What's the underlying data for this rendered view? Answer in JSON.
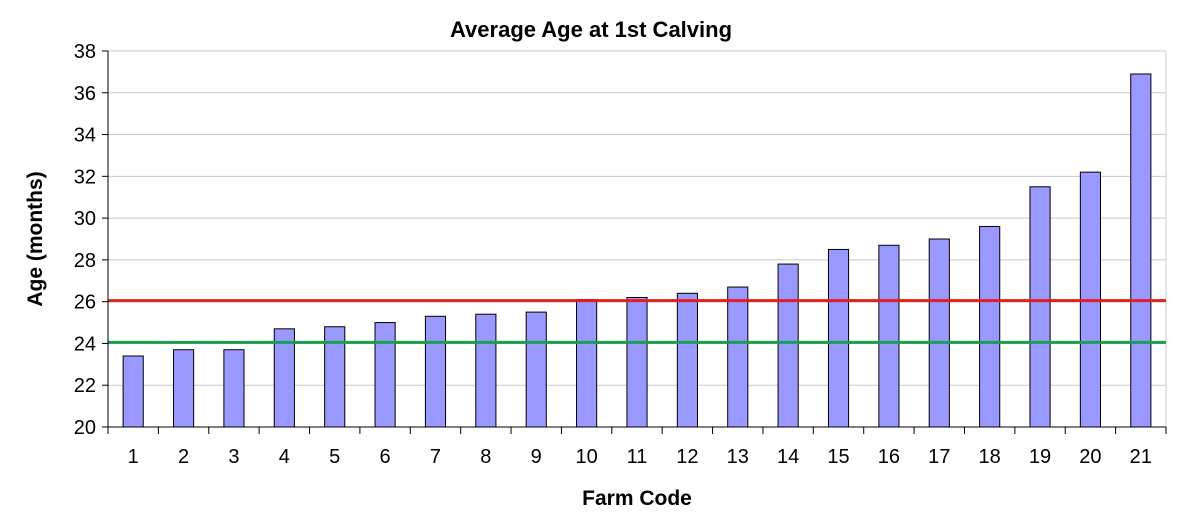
{
  "chart_data": {
    "type": "bar",
    "title": "Average Age at 1st Calving",
    "xlabel": "Farm Code",
    "ylabel": "Age (months)",
    "ylim": [
      20,
      38
    ],
    "yticks": [
      20,
      22,
      24,
      26,
      28,
      30,
      32,
      34,
      36,
      38
    ],
    "grid": true,
    "legend": "none",
    "categories": [
      "1",
      "2",
      "3",
      "4",
      "5",
      "6",
      "7",
      "8",
      "9",
      "10",
      "11",
      "12",
      "13",
      "14",
      "15",
      "16",
      "17",
      "18",
      "19",
      "20",
      "21"
    ],
    "series": [
      {
        "values": [
          23.4,
          23.7,
          23.7,
          24.7,
          24.8,
          25.0,
          25.3,
          25.4,
          25.5,
          26.1,
          26.2,
          26.4,
          26.7,
          27.8,
          28.5,
          28.7,
          29.0,
          29.6,
          31.5,
          32.2,
          36.9
        ],
        "color": "#9999ff"
      }
    ],
    "reference_lines": [
      {
        "value": 26.05,
        "color": "#e31e1e"
      },
      {
        "value": 24.05,
        "color": "#16a04f"
      }
    ]
  }
}
